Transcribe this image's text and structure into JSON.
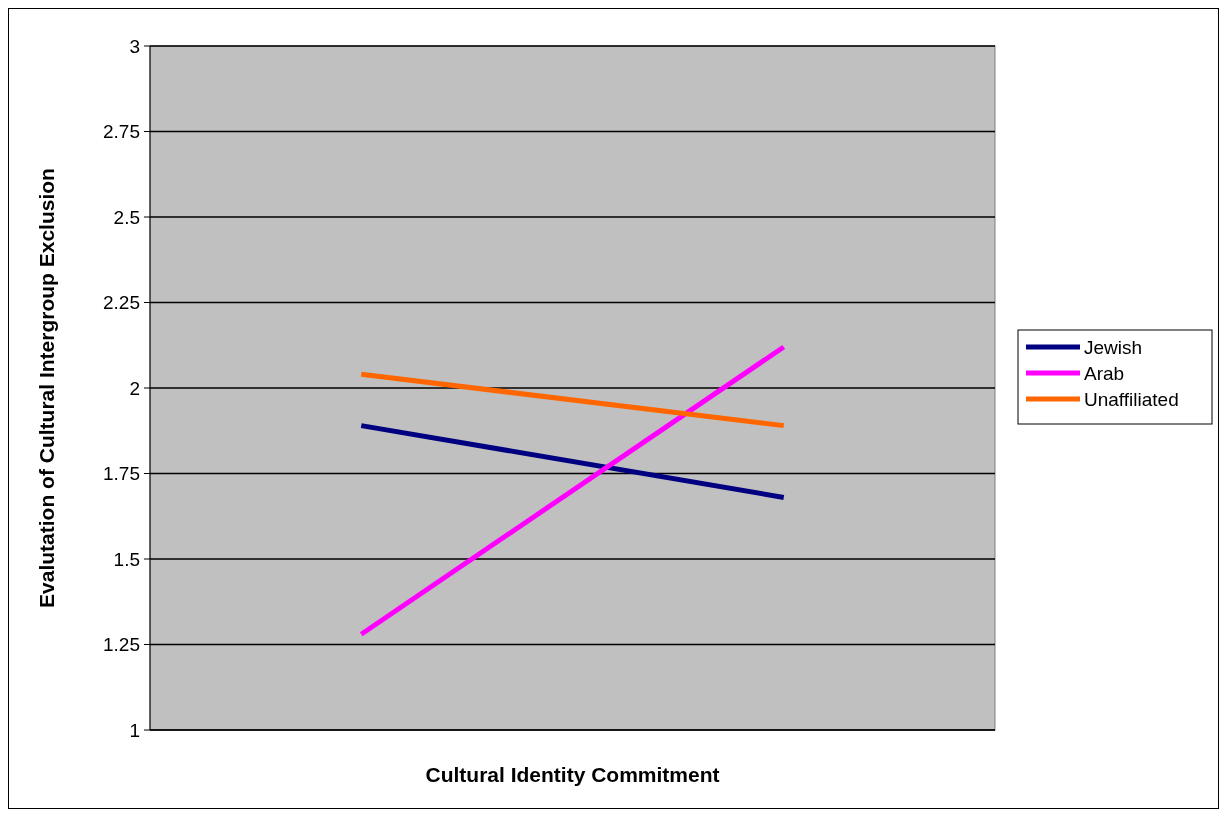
{
  "chart_data": {
    "type": "line",
    "xlabel": "Cultural Identity Commitment",
    "ylabel": "Evalutation of Cultural Intergroup Exclusion",
    "categories": [
      null,
      null
    ],
    "series": [
      {
        "name": "Jewish",
        "color": "#000080",
        "values": [
          1.89,
          1.68
        ]
      },
      {
        "name": "Arab",
        "color": "#ff00ff",
        "values": [
          1.28,
          2.12
        ]
      },
      {
        "name": "Unaffiliated",
        "color": "#ff6600",
        "values": [
          2.04,
          1.89
        ]
      }
    ],
    "ylim": [
      1,
      3
    ],
    "yticks": [
      1,
      1.25,
      1.5,
      1.75,
      2,
      2.25,
      2.5,
      2.75,
      3
    ],
    "grid": "y",
    "legend": "right",
    "marker": "none",
    "line_style": "solid"
  }
}
